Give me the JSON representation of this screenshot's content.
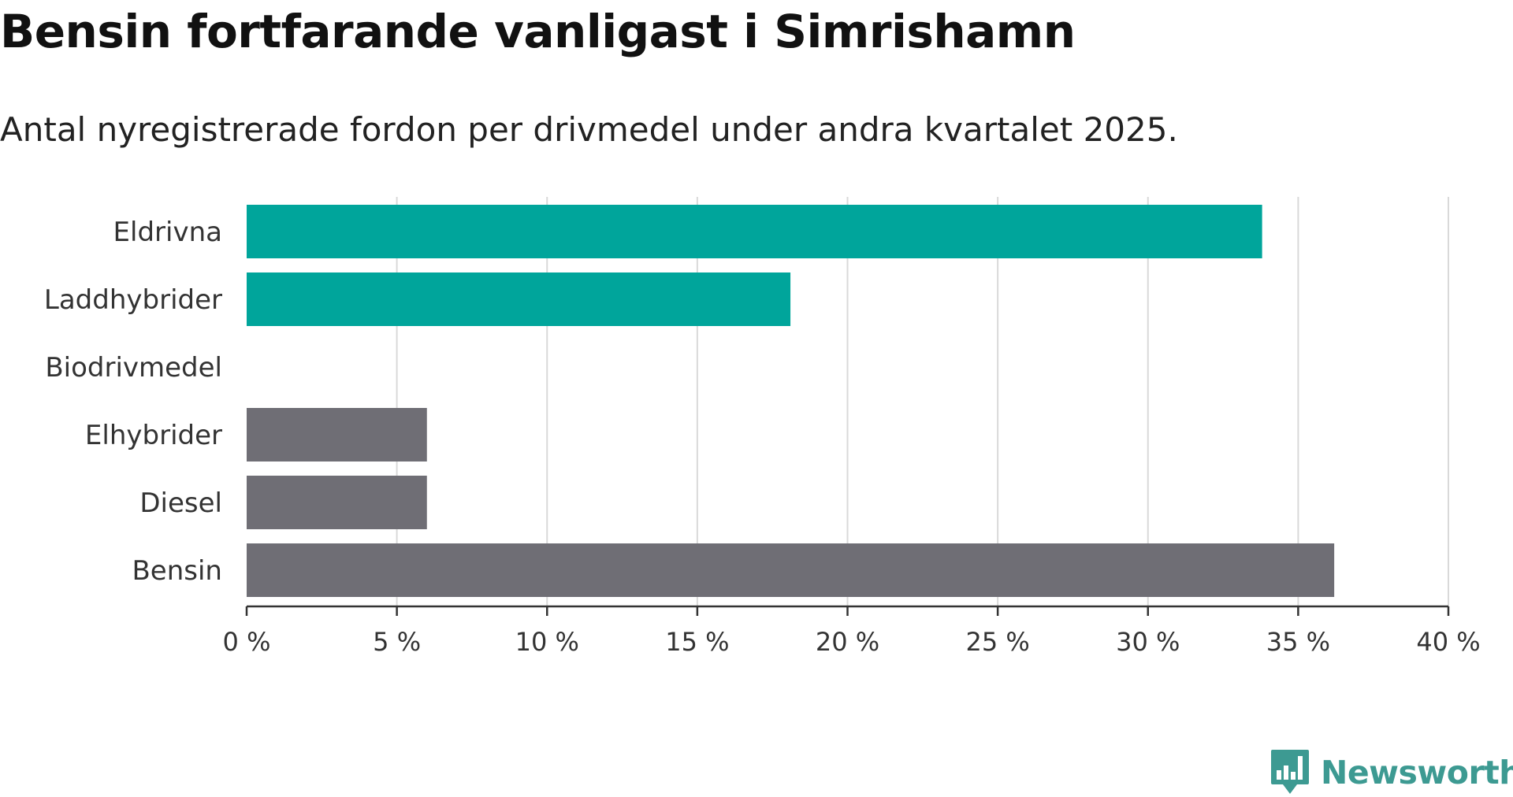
{
  "title": "Bensin fortfarande vanligast i Simrishamn",
  "subtitle": "Antal nyregistrerade fordon per drivmedel under andra kvartalet 2025.",
  "brand": {
    "name": "Newsworthy",
    "icon": "newsworthy-logo-icon"
  },
  "colors": {
    "highlight": "#00a59b",
    "other": "#6f6e75",
    "grid": "#d9d9d9",
    "axis": "#333333",
    "brand": "#3d9a92"
  },
  "chart_data": {
    "type": "bar",
    "orientation": "horizontal",
    "categories": [
      "Eldrivna",
      "Laddhybrider",
      "Biodrivmedel",
      "Elhybrider",
      "Diesel",
      "Bensin"
    ],
    "values": [
      33.8,
      18.1,
      0,
      6.0,
      6.0,
      36.2
    ],
    "bar_colors": [
      "#00a59b",
      "#00a59b",
      "#6f6e75",
      "#6f6e75",
      "#6f6e75",
      "#6f6e75"
    ],
    "unit": "%",
    "xlim": [
      0,
      40
    ],
    "x_ticks": [
      0,
      5,
      10,
      15,
      20,
      25,
      30,
      35,
      40
    ],
    "x_tick_labels": [
      "0 %",
      "5 %",
      "10 %",
      "15 %",
      "20 %",
      "25 %",
      "30 %",
      "35 %",
      "40 %"
    ],
    "grid": "vertical",
    "legend": "none"
  }
}
